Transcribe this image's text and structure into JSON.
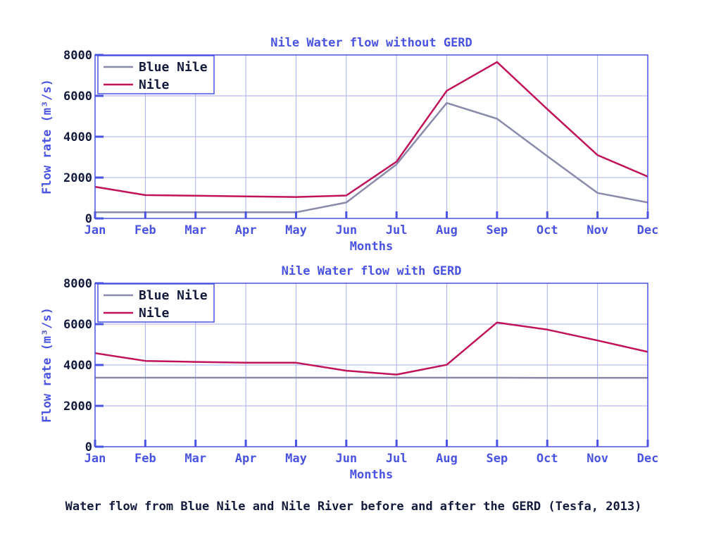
{
  "chart_data": [
    {
      "type": "line",
      "title": "Nile Water flow without GERD",
      "xlabel": "Months",
      "ylabel": "Flow rate (m³/s)",
      "categories": [
        "Jan",
        "Feb",
        "Mar",
        "Apr",
        "May",
        "Jun",
        "Jul",
        "Aug",
        "Sep",
        "Oct",
        "Nov",
        "Dec"
      ],
      "ylim": [
        0,
        8000
      ],
      "yticks": [
        0,
        2000,
        4000,
        6000,
        8000
      ],
      "grid": true,
      "legend_position": "top-left",
      "series": [
        {
          "name": "Blue Nile",
          "color": "#8a8aaa",
          "values": [
            300,
            300,
            300,
            300,
            300,
            780,
            2650,
            5650,
            4880,
            3050,
            1250,
            780
          ]
        },
        {
          "name": "Nile",
          "color": "#c0135a",
          "values": [
            1550,
            1140,
            1110,
            1080,
            1050,
            1120,
            2780,
            6250,
            7650,
            5350,
            3100,
            2050
          ]
        }
      ]
    },
    {
      "type": "line",
      "title": "Nile Water flow with GERD",
      "xlabel": "Months",
      "ylabel": "Flow rate (m³/s)",
      "categories": [
        "Jan",
        "Feb",
        "Mar",
        "Apr",
        "May",
        "Jun",
        "Jul",
        "Aug",
        "Sep",
        "Oct",
        "Nov",
        "Dec"
      ],
      "ylim": [
        0,
        8000
      ],
      "yticks": [
        0,
        2000,
        4000,
        6000,
        8000
      ],
      "grid": true,
      "legend_position": "top-left",
      "series": [
        {
          "name": "Blue Nile",
          "color": "#8a8aaa",
          "values": [
            3380,
            3380,
            3380,
            3380,
            3380,
            3380,
            3380,
            3380,
            3380,
            3370,
            3370,
            3370
          ]
        },
        {
          "name": "Nile",
          "color": "#c0135a",
          "values": [
            4580,
            4200,
            4150,
            4110,
            4110,
            3720,
            3530,
            4010,
            6080,
            5730,
            5200,
            4640
          ]
        }
      ]
    }
  ],
  "caption": "Water flow from Blue Nile and Nile River before and after the GERD (Tesfa, 2013)"
}
